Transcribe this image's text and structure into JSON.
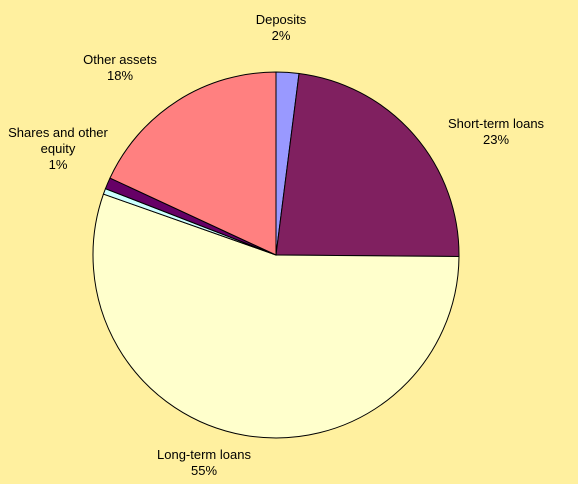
{
  "chart_data": {
    "type": "pie",
    "categories": [
      "Deposits",
      "Short-term loans",
      "Long-term loans",
      null,
      "Shares and other equity",
      "Other assets"
    ],
    "values": [
      2,
      23,
      55,
      0.5,
      1,
      18
    ],
    "value_labels": [
      "2%",
      "23%",
      "55%",
      null,
      "1%",
      "18%"
    ],
    "colors": [
      "#9999ff",
      "#802060",
      "#ffffcc",
      "#ccffff",
      "#660066",
      "#ff8080"
    ]
  }
}
